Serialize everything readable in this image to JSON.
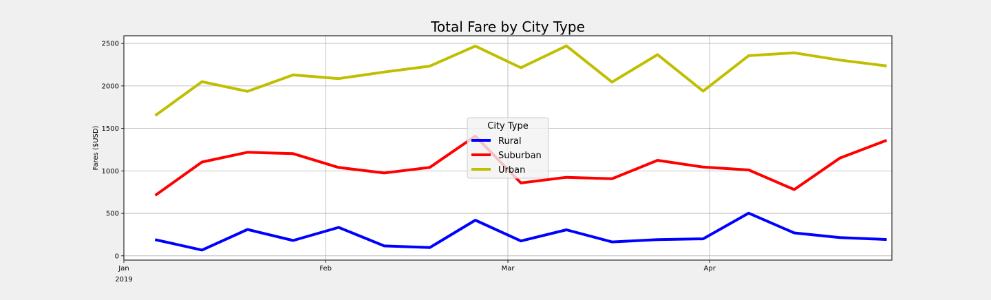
{
  "chart_data": {
    "type": "line",
    "title": "Total Fare by City Type",
    "xlabel": "",
    "ylabel": "Fares ($USD)",
    "x": [
      "2019-01-06",
      "2019-01-13",
      "2019-01-20",
      "2019-01-27",
      "2019-02-03",
      "2019-02-10",
      "2019-02-17",
      "2019-02-24",
      "2019-03-03",
      "2019-03-10",
      "2019-03-17",
      "2019-03-24",
      "2019-03-31",
      "2019-04-07",
      "2019-04-14",
      "2019-04-21",
      "2019-04-28"
    ],
    "xlim": [
      "2019-01-01",
      "2019-04-29"
    ],
    "ylim": [
      -50,
      2590
    ],
    "x_ticks": [
      {
        "date": "2019-01-01",
        "label": "Jan",
        "sublabel": "2019"
      },
      {
        "date": "2019-02-01",
        "label": "Feb",
        "sublabel": ""
      },
      {
        "date": "2019-03-01",
        "label": "Mar",
        "sublabel": ""
      },
      {
        "date": "2019-04-01",
        "label": "Apr",
        "sublabel": ""
      }
    ],
    "y_ticks": [
      0,
      500,
      1000,
      1500,
      2000,
      2500
    ],
    "grid": true,
    "legend": {
      "title": "City Type",
      "position": "center"
    },
    "series": [
      {
        "name": "Rural",
        "color": "#0000ff",
        "values": [
          187,
          68,
          310,
          181,
          335,
          117,
          97,
          420,
          175,
          306,
          164,
          191,
          200,
          502,
          270,
          216,
          193
        ]
      },
      {
        "name": "Suburban",
        "color": "#ff0000",
        "values": [
          722,
          1104,
          1219,
          1203,
          1040,
          975,
          1041,
          1409,
          858,
          924,
          907,
          1124,
          1045,
          1011,
          780,
          1150,
          1354
        ]
      },
      {
        "name": "Urban",
        "color": "#bfbf00",
        "values": [
          1661,
          2050,
          1936,
          2129,
          2086,
          2163,
          2233,
          2469,
          2214,
          2471,
          2045,
          2368,
          1939,
          2356,
          2389,
          2304,
          2237
        ]
      }
    ]
  }
}
